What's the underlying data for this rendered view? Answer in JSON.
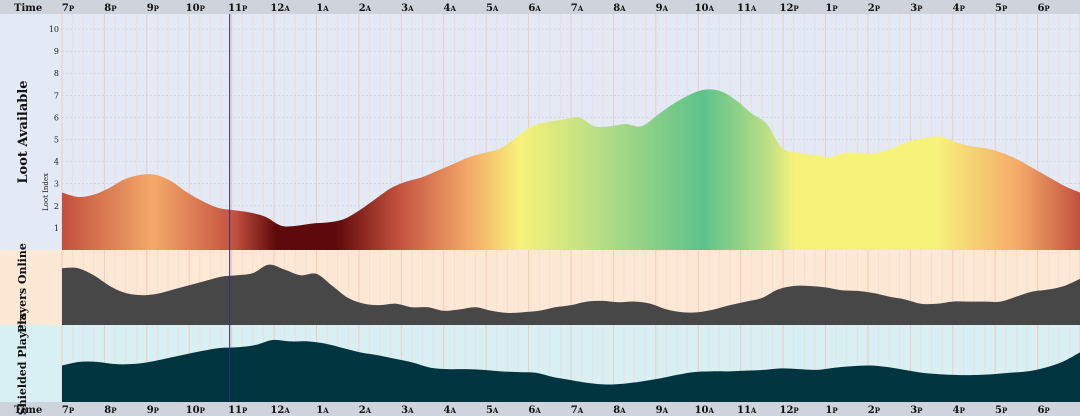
{
  "timeline": {
    "corner_label": "Time",
    "hour_labels": [
      "7p",
      "8p",
      "9p",
      "10p",
      "11p",
      "12a",
      "1a",
      "2a",
      "3a",
      "4a",
      "5a",
      "6a",
      "7a",
      "8a",
      "9a",
      "10a",
      "11a",
      "12p",
      "1p",
      "2p",
      "3p",
      "4p",
      "5p",
      "6p",
      "7p"
    ]
  },
  "colors": {
    "loot_bg": "#e3eaf5",
    "players_bg": "#fde8d6",
    "shielded_bg": "#d8f0f4",
    "players_fill": "#474747",
    "shielded_fill": "#00343f",
    "current_time_line": "#2a2a8a",
    "grid": "#f3c9b8"
  },
  "chart_data": [
    {
      "type": "area",
      "id": "loot",
      "title": "Loot Available",
      "ylabel": "Loot Index",
      "ylim": [
        0,
        10.5
      ],
      "yticks": [
        1,
        2,
        3,
        4,
        5,
        6,
        7,
        8,
        9,
        10
      ],
      "x_start": "7p",
      "x_end": "7p",
      "values": [
        2.6,
        2.4,
        2.5,
        2.8,
        3.2,
        3.4,
        3.4,
        3.1,
        2.6,
        2.2,
        1.9,
        1.8,
        1.7,
        1.5,
        1.1,
        1.1,
        1.2,
        1.25,
        1.4,
        1.8,
        2.3,
        2.8,
        3.1,
        3.3,
        3.6,
        3.9,
        4.2,
        4.4,
        4.6,
        5.1,
        5.6,
        5.8,
        5.9,
        6.0,
        5.6,
        5.6,
        5.7,
        5.6,
        6.1,
        6.6,
        7.0,
        7.25,
        7.2,
        6.8,
        6.2,
        5.7,
        4.6,
        4.4,
        4.3,
        4.2,
        4.4,
        4.4,
        4.4,
        4.6,
        4.9,
        5.05,
        5.15,
        4.9,
        4.7,
        4.6,
        4.4,
        4.1,
        3.7,
        3.3,
        2.9,
        2.6
      ],
      "color_scale": [
        "#5f0a0a",
        "#c2503e",
        "#f4a96a",
        "#f7f27a",
        "#b6dd86",
        "#5cc28a"
      ],
      "current_time": "11p"
    },
    {
      "type": "area",
      "id": "players",
      "title": "Players Online",
      "ylim": [
        0,
        1
      ],
      "values": [
        0.8,
        0.8,
        0.7,
        0.55,
        0.45,
        0.42,
        0.44,
        0.5,
        0.56,
        0.62,
        0.68,
        0.7,
        0.73,
        0.85,
        0.78,
        0.7,
        0.72,
        0.55,
        0.38,
        0.3,
        0.28,
        0.3,
        0.25,
        0.25,
        0.2,
        0.22,
        0.25,
        0.2,
        0.17,
        0.18,
        0.2,
        0.25,
        0.28,
        0.33,
        0.34,
        0.32,
        0.33,
        0.3,
        0.22,
        0.18,
        0.18,
        0.22,
        0.28,
        0.33,
        0.38,
        0.5,
        0.55,
        0.55,
        0.53,
        0.49,
        0.48,
        0.45,
        0.4,
        0.36,
        0.3,
        0.3,
        0.33,
        0.33,
        0.33,
        0.33,
        0.4,
        0.47,
        0.5,
        0.55,
        0.65
      ],
      "current_time": "11p"
    },
    {
      "type": "area",
      "id": "shielded",
      "title": "Shielded Players",
      "ylim": [
        0,
        1
      ],
      "values": [
        0.5,
        0.55,
        0.55,
        0.52,
        0.52,
        0.55,
        0.6,
        0.65,
        0.7,
        0.74,
        0.75,
        0.78,
        0.85,
        0.83,
        0.83,
        0.8,
        0.74,
        0.68,
        0.64,
        0.59,
        0.54,
        0.47,
        0.45,
        0.45,
        0.44,
        0.42,
        0.41,
        0.4,
        0.34,
        0.3,
        0.26,
        0.24,
        0.25,
        0.28,
        0.32,
        0.37,
        0.41,
        0.42,
        0.42,
        0.43,
        0.44,
        0.46,
        0.45,
        0.44,
        0.47,
        0.49,
        0.5,
        0.48,
        0.44,
        0.4,
        0.38,
        0.37,
        0.37,
        0.38,
        0.4,
        0.42,
        0.47,
        0.55,
        0.68
      ],
      "current_time": "11p"
    }
  ]
}
